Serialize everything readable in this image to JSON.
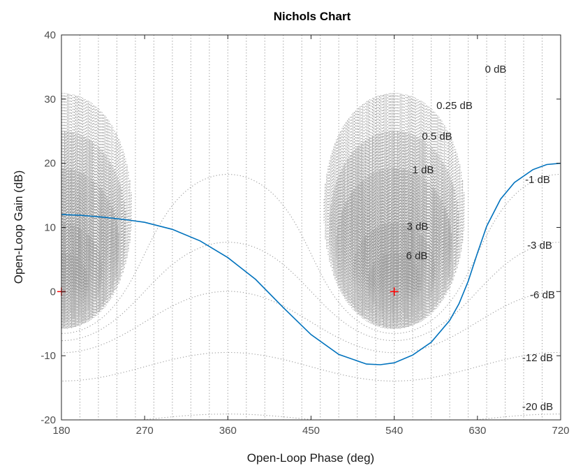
{
  "chart_data": {
    "type": "line",
    "title": "Nichols Chart",
    "xlabel": "Open-Loop Phase (deg)",
    "ylabel": "Open-Loop Gain (dB)",
    "xlim": [
      180,
      720
    ],
    "ylim": [
      -20,
      40
    ],
    "xticks": [
      "180",
      "270",
      "360",
      "450",
      "540",
      "630",
      "720"
    ],
    "yticks": [
      "40",
      "30",
      "20",
      "10",
      "0",
      "-10",
      "-20"
    ],
    "grid": true,
    "closed_loop_magnitude_labels": [
      "0 dB",
      "0.25 dB",
      "0.5 dB",
      "1 dB",
      "3 dB",
      "6 dB",
      "-1 dB",
      "-3 dB",
      "-6 dB",
      "-12 dB",
      "-20 dB"
    ],
    "critical_points": [
      {
        "x": 180,
        "y": 0
      },
      {
        "x": 540,
        "y": 0
      }
    ],
    "series": [
      {
        "x": [
          180,
          200,
          225,
          250,
          270,
          300,
          330,
          360,
          390,
          420,
          450,
          480,
          510,
          525,
          540,
          560,
          580,
          600,
          610,
          620,
          630,
          640,
          655,
          670,
          690,
          705,
          720
        ],
        "y": [
          12,
          11.9,
          11.6,
          11.2,
          10.8,
          9.7,
          7.9,
          5.3,
          1.9,
          -2.5,
          -6.7,
          -9.8,
          -11.3,
          -11.4,
          -11.1,
          -9.9,
          -7.9,
          -4.5,
          -1.9,
          1.6,
          6.0,
          10.2,
          14.4,
          17.0,
          19.0,
          19.8,
          20.0
        ]
      }
    ],
    "colors": {
      "series": "#0072bd",
      "grid": "#9a9a9a",
      "critical_point": "#ff0000",
      "axes": "#262626"
    }
  }
}
